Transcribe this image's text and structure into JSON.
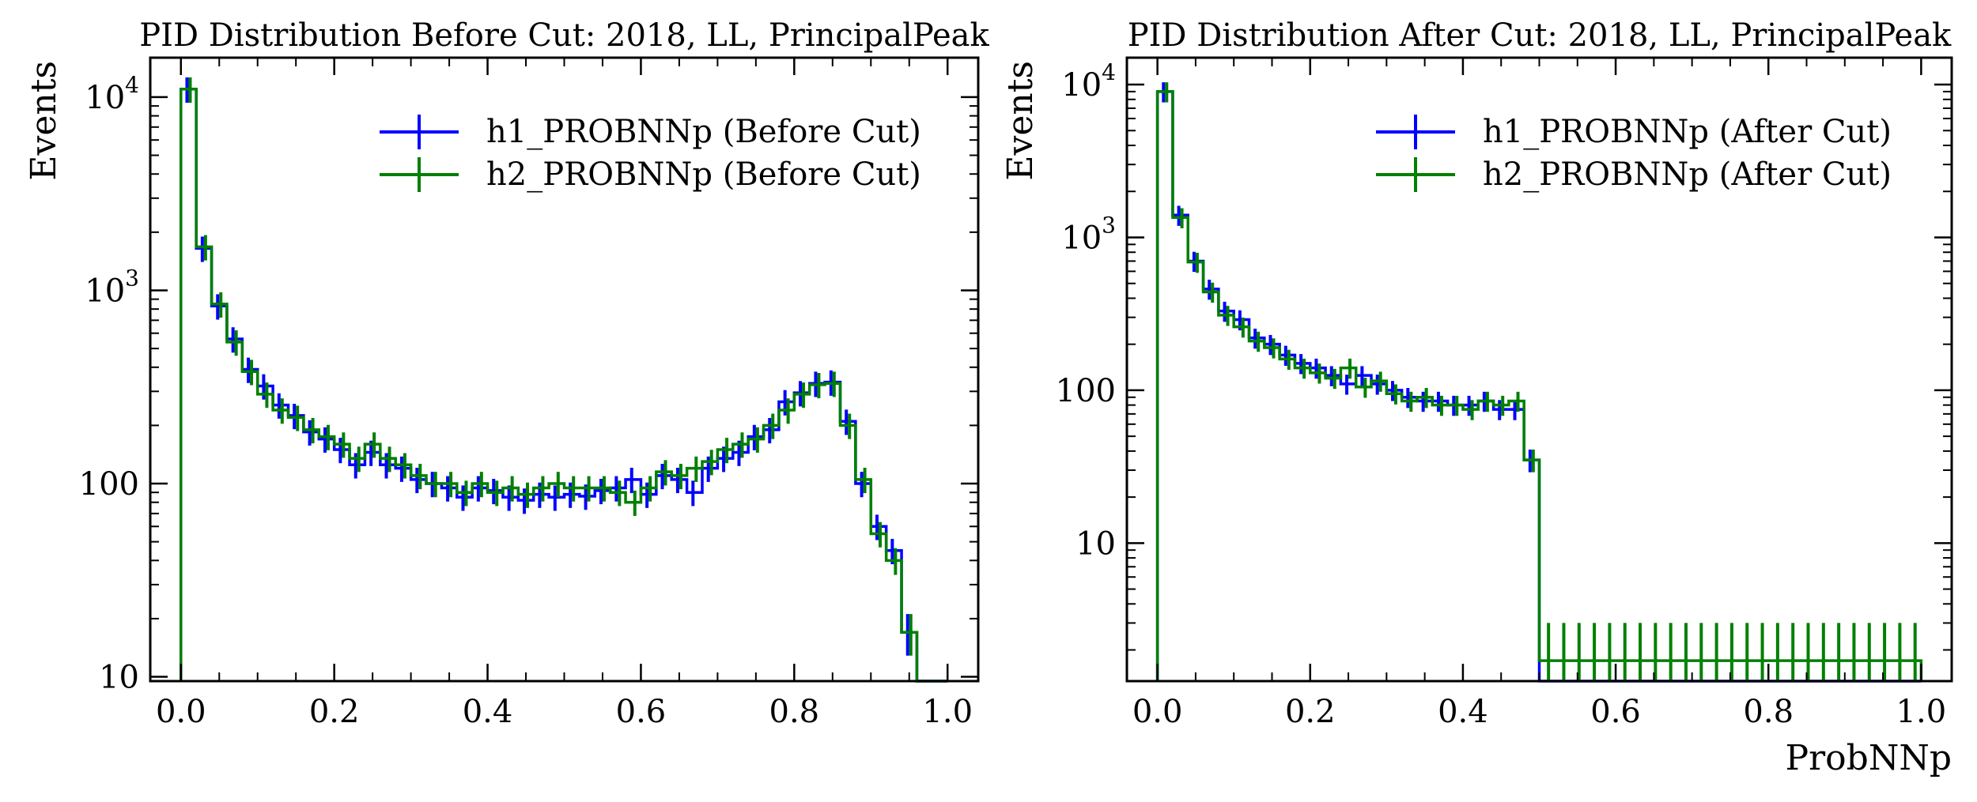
{
  "chart_data": [
    {
      "type": "histogram",
      "title": "PID Distribution Before Cut: 2018, LL, PrincipalPeak",
      "xlabel": "",
      "ylabel": "Events",
      "yscale": "log",
      "xlim": [
        -0.04,
        1.04
      ],
      "ylim": [
        9.5,
        16000
      ],
      "grid": false,
      "legend_position": "top-right",
      "xticks": [
        0.0,
        0.2,
        0.4,
        0.6,
        0.8,
        1.0
      ],
      "xtick_labels": [
        "0.0",
        "0.2",
        "0.4",
        "0.6",
        "0.8",
        "1.0"
      ],
      "yticks": [
        10,
        100,
        1000,
        10000
      ],
      "ytick_labels": [
        {
          "base": "10",
          "exp": ""
        },
        {
          "base": "100",
          "exp": ""
        },
        {
          "base": "10",
          "exp": "3"
        },
        {
          "base": "10",
          "exp": "4"
        }
      ],
      "bin_edges_range": [
        0.0,
        1.0
      ],
      "n_bins": 50,
      "series": [
        {
          "name": "h1_PROBNNp (Before Cut)",
          "color": "#0000ff",
          "values": [
            11000,
            1650,
            830,
            560,
            390,
            320,
            255,
            225,
            185,
            170,
            150,
            125,
            145,
            125,
            120,
            105,
            100,
            95,
            85,
            95,
            92,
            85,
            82,
            88,
            85,
            88,
            86,
            92,
            95,
            105,
            88,
            110,
            105,
            90,
            120,
            135,
            145,
            175,
            190,
            265,
            295,
            330,
            335,
            210,
            100,
            60,
            45,
            17,
            0,
            0
          ]
        },
        {
          "name": "h2_PROBNNp (Before Cut)",
          "color": "#008000",
          "values": [
            11000,
            1680,
            850,
            540,
            380,
            290,
            240,
            220,
            190,
            175,
            160,
            135,
            160,
            135,
            125,
            110,
            100,
            100,
            90,
            100,
            90,
            95,
            88,
            95,
            100,
            95,
            95,
            95,
            90,
            80,
            95,
            115,
            110,
            120,
            130,
            150,
            160,
            170,
            200,
            240,
            290,
            325,
            330,
            200,
            105,
            55,
            40,
            17,
            0,
            0
          ]
        }
      ]
    },
    {
      "type": "histogram",
      "title": "PID Distribution After Cut: 2018, LL, PrincipalPeak",
      "xlabel": "ProbNNp",
      "ylabel": "Events",
      "yscale": "log",
      "xlim": [
        -0.04,
        1.04
      ],
      "ylim": [
        1.25,
        15000
      ],
      "grid": false,
      "legend_position": "top-right",
      "xticks": [
        0.0,
        0.2,
        0.4,
        0.6,
        0.8,
        1.0
      ],
      "xtick_labels": [
        "0.0",
        "0.2",
        "0.4",
        "0.6",
        "0.8",
        "1.0"
      ],
      "yticks": [
        10,
        100,
        1000,
        10000
      ],
      "ytick_labels": [
        {
          "base": "10",
          "exp": ""
        },
        {
          "base": "100",
          "exp": ""
        },
        {
          "base": "10",
          "exp": "3"
        },
        {
          "base": "10",
          "exp": "4"
        }
      ],
      "bin_edges_range": [
        0.0,
        1.0
      ],
      "n_bins": 50,
      "series": [
        {
          "name": "h1_PROBNNp (After Cut)",
          "color": "#0000ff",
          "values": [
            9000,
            1400,
            700,
            460,
            330,
            290,
            220,
            200,
            170,
            150,
            140,
            125,
            110,
            125,
            110,
            100,
            90,
            85,
            85,
            80,
            80,
            85,
            75,
            75,
            35,
            0,
            0,
            0,
            0,
            0,
            0,
            0,
            0,
            0,
            0,
            0,
            0,
            0,
            0,
            0,
            0,
            0,
            0,
            0,
            0,
            0,
            0,
            0,
            0,
            0
          ]
        },
        {
          "name": "h2_PROBNNp (After Cut)",
          "color": "#008000",
          "values": [
            9000,
            1350,
            690,
            440,
            310,
            260,
            210,
            190,
            160,
            140,
            130,
            120,
            140,
            105,
            115,
            95,
            85,
            90,
            80,
            80,
            75,
            85,
            80,
            85,
            35,
            1.7,
            1.7,
            1.7,
            1.7,
            1.7,
            1.7,
            1.7,
            1.7,
            1.7,
            1.7,
            1.7,
            1.7,
            1.7,
            1.7,
            1.7,
            1.7,
            1.7,
            1.7,
            1.7,
            1.7,
            1.7,
            1.7,
            1.7,
            1.7,
            1.7
          ]
        }
      ]
    }
  ]
}
